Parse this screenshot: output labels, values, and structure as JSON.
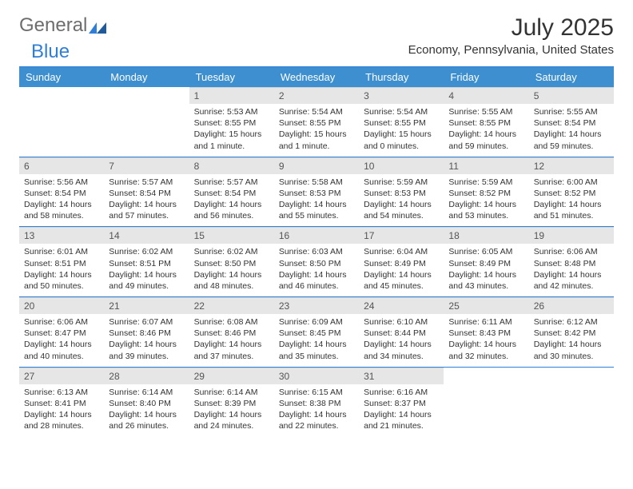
{
  "logo": {
    "part1": "General",
    "part2": "Blue"
  },
  "title": "July 2025",
  "subtitle": "Economy, Pennsylvania, United States",
  "colors": {
    "header_bg": "#3d8fcf",
    "rule": "#2f7ed8",
    "daynum_bg": "#e6e6e6",
    "logo_gray": "#6d6d6d",
    "logo_blue": "#2f7ed8"
  },
  "day_names": [
    "Sunday",
    "Monday",
    "Tuesday",
    "Wednesday",
    "Thursday",
    "Friday",
    "Saturday"
  ],
  "weeks": [
    [
      {
        "empty": true
      },
      {
        "empty": true
      },
      {
        "num": "1",
        "sunrise": "5:53 AM",
        "sunset": "8:55 PM",
        "daylight": "15 hours and 1 minute."
      },
      {
        "num": "2",
        "sunrise": "5:54 AM",
        "sunset": "8:55 PM",
        "daylight": "15 hours and 1 minute."
      },
      {
        "num": "3",
        "sunrise": "5:54 AM",
        "sunset": "8:55 PM",
        "daylight": "15 hours and 0 minutes."
      },
      {
        "num": "4",
        "sunrise": "5:55 AM",
        "sunset": "8:55 PM",
        "daylight": "14 hours and 59 minutes."
      },
      {
        "num": "5",
        "sunrise": "5:55 AM",
        "sunset": "8:54 PM",
        "daylight": "14 hours and 59 minutes."
      }
    ],
    [
      {
        "num": "6",
        "sunrise": "5:56 AM",
        "sunset": "8:54 PM",
        "daylight": "14 hours and 58 minutes."
      },
      {
        "num": "7",
        "sunrise": "5:57 AM",
        "sunset": "8:54 PM",
        "daylight": "14 hours and 57 minutes."
      },
      {
        "num": "8",
        "sunrise": "5:57 AM",
        "sunset": "8:54 PM",
        "daylight": "14 hours and 56 minutes."
      },
      {
        "num": "9",
        "sunrise": "5:58 AM",
        "sunset": "8:53 PM",
        "daylight": "14 hours and 55 minutes."
      },
      {
        "num": "10",
        "sunrise": "5:59 AM",
        "sunset": "8:53 PM",
        "daylight": "14 hours and 54 minutes."
      },
      {
        "num": "11",
        "sunrise": "5:59 AM",
        "sunset": "8:52 PM",
        "daylight": "14 hours and 53 minutes."
      },
      {
        "num": "12",
        "sunrise": "6:00 AM",
        "sunset": "8:52 PM",
        "daylight": "14 hours and 51 minutes."
      }
    ],
    [
      {
        "num": "13",
        "sunrise": "6:01 AM",
        "sunset": "8:51 PM",
        "daylight": "14 hours and 50 minutes."
      },
      {
        "num": "14",
        "sunrise": "6:02 AM",
        "sunset": "8:51 PM",
        "daylight": "14 hours and 49 minutes."
      },
      {
        "num": "15",
        "sunrise": "6:02 AM",
        "sunset": "8:50 PM",
        "daylight": "14 hours and 48 minutes."
      },
      {
        "num": "16",
        "sunrise": "6:03 AM",
        "sunset": "8:50 PM",
        "daylight": "14 hours and 46 minutes."
      },
      {
        "num": "17",
        "sunrise": "6:04 AM",
        "sunset": "8:49 PM",
        "daylight": "14 hours and 45 minutes."
      },
      {
        "num": "18",
        "sunrise": "6:05 AM",
        "sunset": "8:49 PM",
        "daylight": "14 hours and 43 minutes."
      },
      {
        "num": "19",
        "sunrise": "6:06 AM",
        "sunset": "8:48 PM",
        "daylight": "14 hours and 42 minutes."
      }
    ],
    [
      {
        "num": "20",
        "sunrise": "6:06 AM",
        "sunset": "8:47 PM",
        "daylight": "14 hours and 40 minutes."
      },
      {
        "num": "21",
        "sunrise": "6:07 AM",
        "sunset": "8:46 PM",
        "daylight": "14 hours and 39 minutes."
      },
      {
        "num": "22",
        "sunrise": "6:08 AM",
        "sunset": "8:46 PM",
        "daylight": "14 hours and 37 minutes."
      },
      {
        "num": "23",
        "sunrise": "6:09 AM",
        "sunset": "8:45 PM",
        "daylight": "14 hours and 35 minutes."
      },
      {
        "num": "24",
        "sunrise": "6:10 AM",
        "sunset": "8:44 PM",
        "daylight": "14 hours and 34 minutes."
      },
      {
        "num": "25",
        "sunrise": "6:11 AM",
        "sunset": "8:43 PM",
        "daylight": "14 hours and 32 minutes."
      },
      {
        "num": "26",
        "sunrise": "6:12 AM",
        "sunset": "8:42 PM",
        "daylight": "14 hours and 30 minutes."
      }
    ],
    [
      {
        "num": "27",
        "sunrise": "6:13 AM",
        "sunset": "8:41 PM",
        "daylight": "14 hours and 28 minutes."
      },
      {
        "num": "28",
        "sunrise": "6:14 AM",
        "sunset": "8:40 PM",
        "daylight": "14 hours and 26 minutes."
      },
      {
        "num": "29",
        "sunrise": "6:14 AM",
        "sunset": "8:39 PM",
        "daylight": "14 hours and 24 minutes."
      },
      {
        "num": "30",
        "sunrise": "6:15 AM",
        "sunset": "8:38 PM",
        "daylight": "14 hours and 22 minutes."
      },
      {
        "num": "31",
        "sunrise": "6:16 AM",
        "sunset": "8:37 PM",
        "daylight": "14 hours and 21 minutes."
      },
      {
        "empty": true
      },
      {
        "empty": true
      }
    ]
  ],
  "labels": {
    "sunrise": "Sunrise:",
    "sunset": "Sunset:",
    "daylight": "Daylight:"
  }
}
